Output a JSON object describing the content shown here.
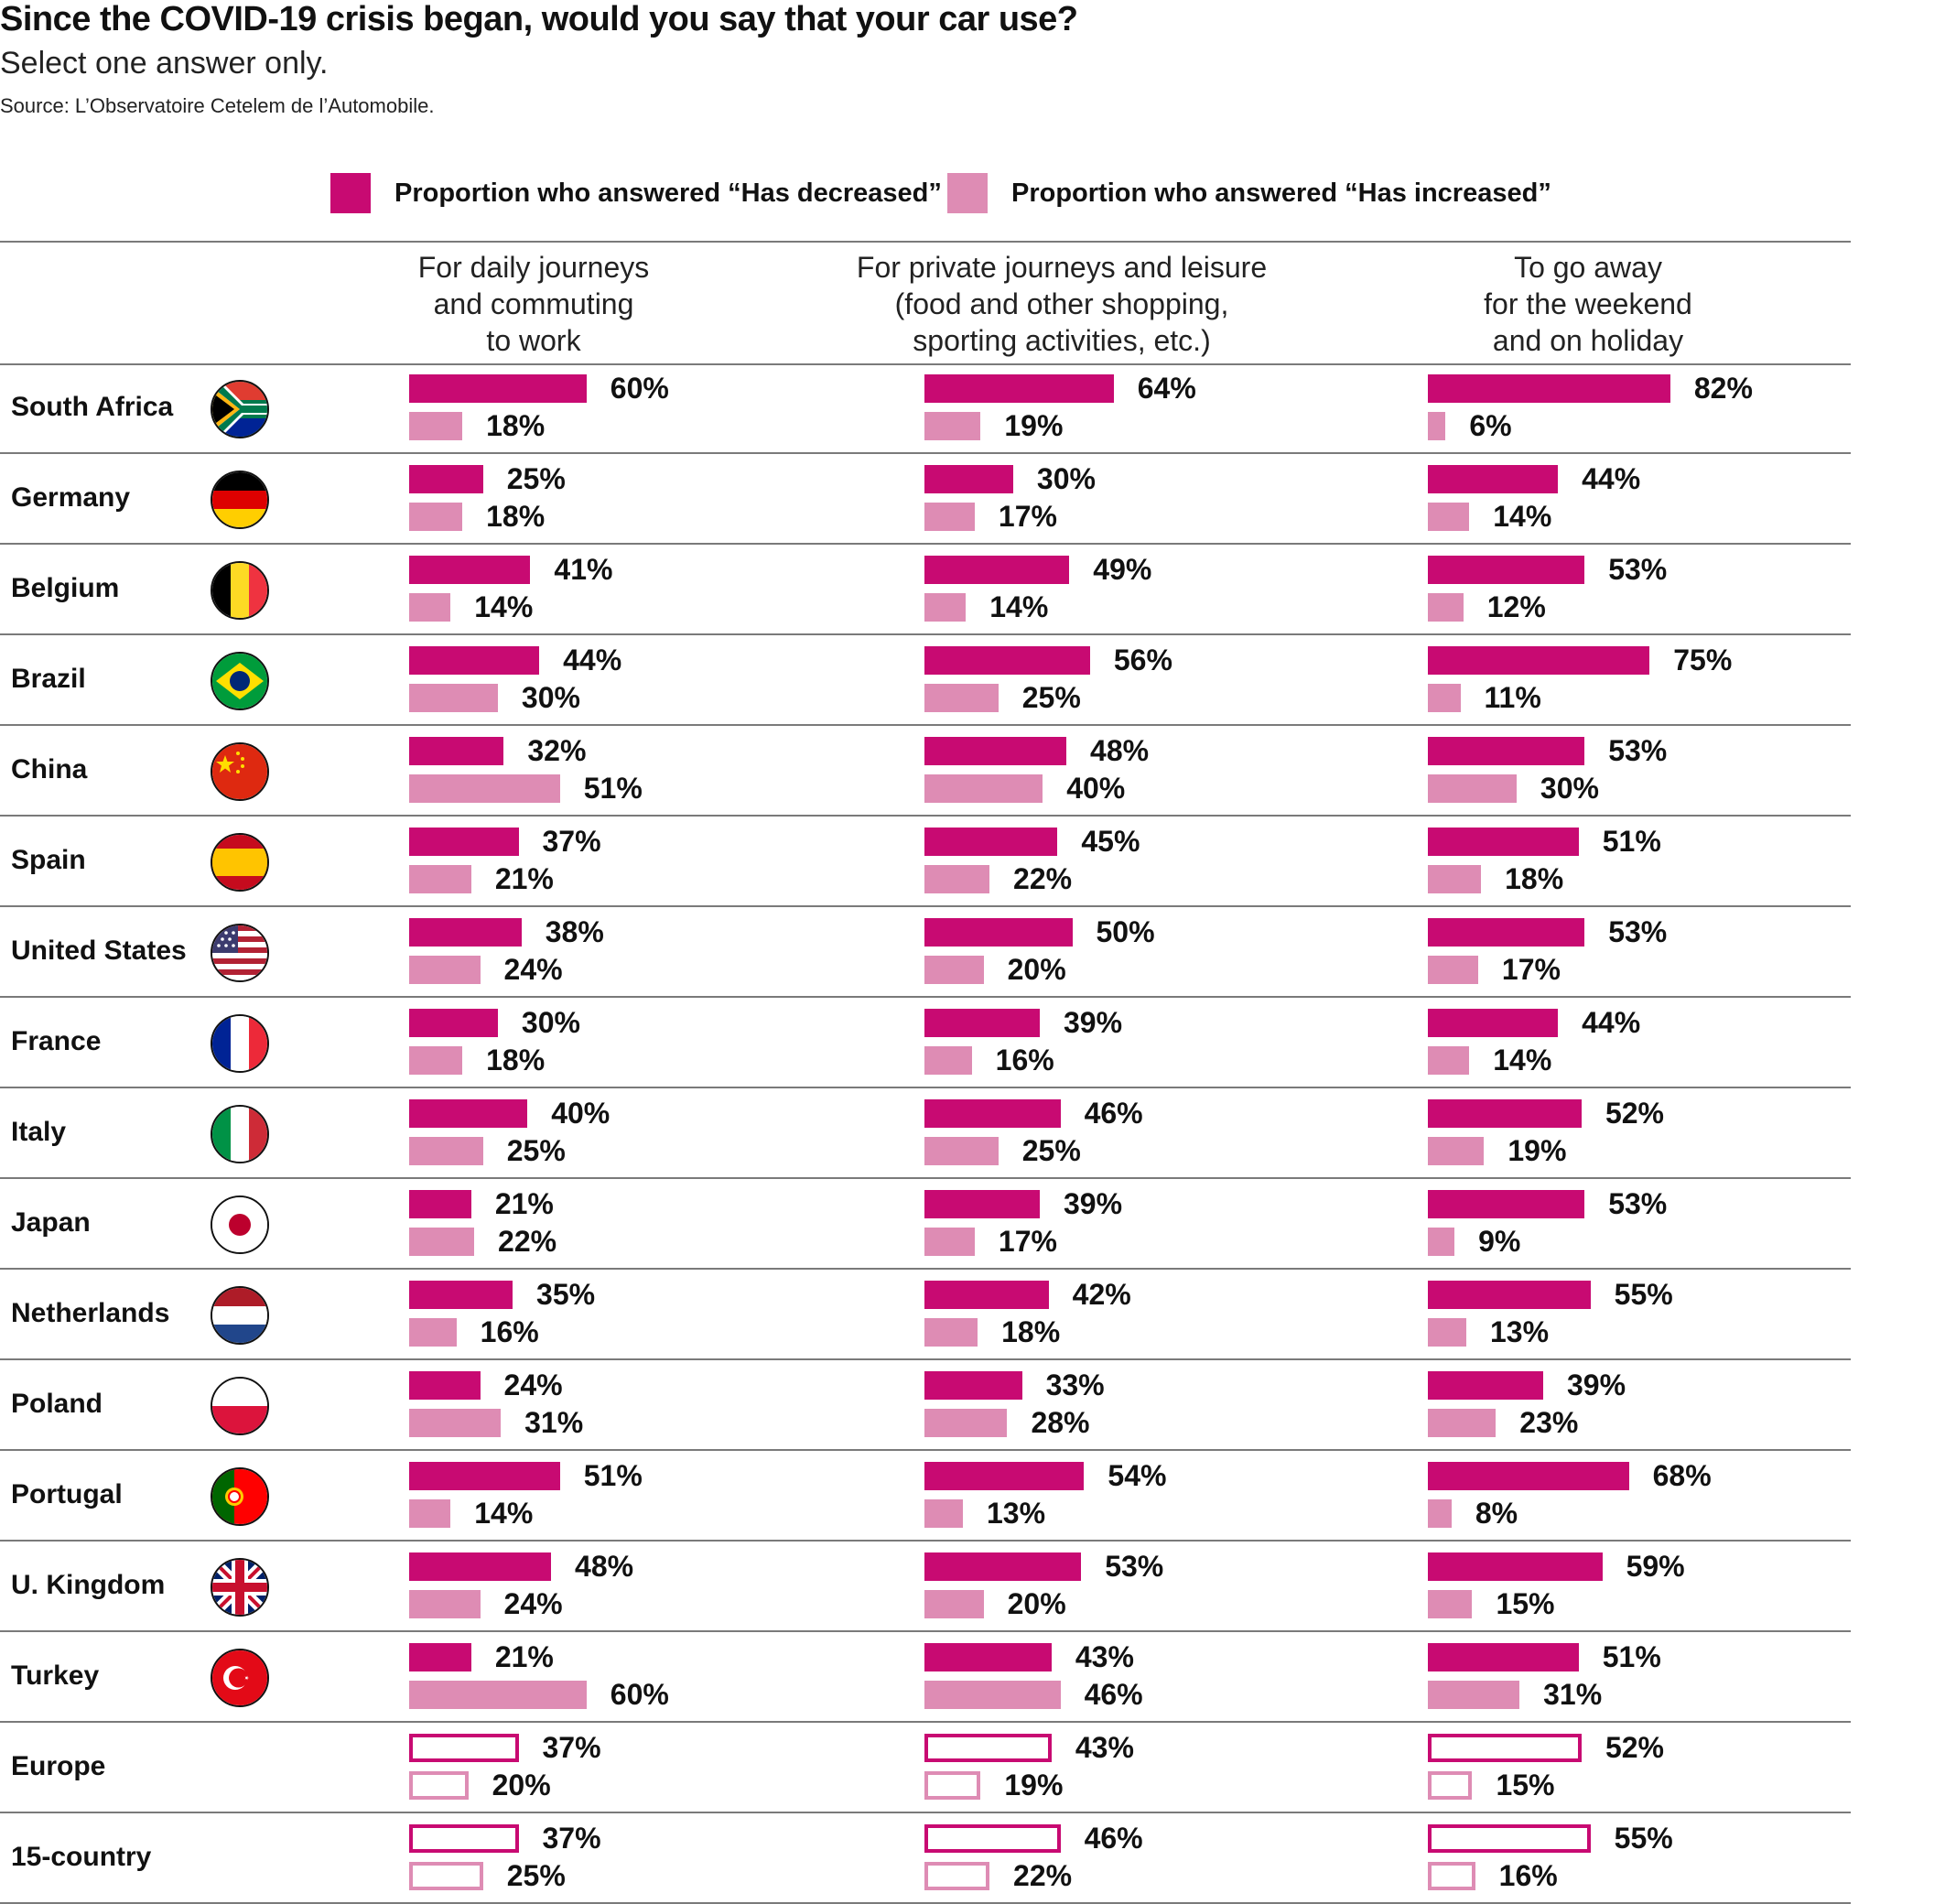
{
  "title": "Since the COVID-19 crisis began, would you say that your car use?",
  "subtitle": "Select one answer only.",
  "source": "Source: L’Observatoire Cetelem de l’Automobile.",
  "colors": {
    "decreased": "#c80a72",
    "increased": "#de8cb4",
    "text": "#111111",
    "rule": "#7a7a7a"
  },
  "legend": [
    {
      "label": "Proportion who answered “Has decreased”",
      "color": "#c80a72"
    },
    {
      "label": "Proportion who answered “Has increased”",
      "color": "#de8cb4"
    }
  ],
  "chart_data": {
    "type": "bar",
    "orientation": "horizontal",
    "title": "Since the COVID-19 crisis began, would you say that your car use?",
    "subtitle": "Select one answer only.",
    "source": "Source: L’Observatoire Cetelem de l’Automobile.",
    "legend_position": "top",
    "grid": false,
    "unit": "%",
    "xlim": [
      0,
      100
    ],
    "panels": [
      "For daily journeys\nand commuting\nto work",
      "For private journeys and leisure\n(food and other shopping,\nsporting activities, etc.)",
      "To go away\nfor the weekend\nand on holiday"
    ],
    "series": [
      {
        "name": "Has decreased",
        "key": "decreased"
      },
      {
        "name": "Has increased",
        "key": "increased"
      }
    ],
    "categories": [
      "South Africa",
      "Germany",
      "Belgium",
      "Brazil",
      "China",
      "Spain",
      "United States",
      "France",
      "Italy",
      "Japan",
      "Netherlands",
      "Poland",
      "Portugal",
      "U. Kingdom",
      "Turkey",
      "Europe",
      "15-country"
    ],
    "rows": [
      {
        "country": "South Africa",
        "flag": "za",
        "aggregate": false,
        "decreased": [
          60,
          64,
          82
        ],
        "increased": [
          18,
          19,
          6
        ]
      },
      {
        "country": "Germany",
        "flag": "de",
        "aggregate": false,
        "decreased": [
          25,
          30,
          44
        ],
        "increased": [
          18,
          17,
          14
        ]
      },
      {
        "country": "Belgium",
        "flag": "be",
        "aggregate": false,
        "decreased": [
          41,
          49,
          53
        ],
        "increased": [
          14,
          14,
          12
        ]
      },
      {
        "country": "Brazil",
        "flag": "br",
        "aggregate": false,
        "decreased": [
          44,
          56,
          75
        ],
        "increased": [
          30,
          25,
          11
        ]
      },
      {
        "country": "China",
        "flag": "cn",
        "aggregate": false,
        "decreased": [
          32,
          48,
          53
        ],
        "increased": [
          51,
          40,
          30
        ]
      },
      {
        "country": "Spain",
        "flag": "es",
        "aggregate": false,
        "decreased": [
          37,
          45,
          51
        ],
        "increased": [
          21,
          22,
          18
        ]
      },
      {
        "country": "United States",
        "flag": "us",
        "aggregate": false,
        "decreased": [
          38,
          50,
          53
        ],
        "increased": [
          24,
          20,
          17
        ]
      },
      {
        "country": "France",
        "flag": "fr",
        "aggregate": false,
        "decreased": [
          30,
          39,
          44
        ],
        "increased": [
          18,
          16,
          14
        ]
      },
      {
        "country": "Italy",
        "flag": "it",
        "aggregate": false,
        "decreased": [
          40,
          46,
          52
        ],
        "increased": [
          25,
          25,
          19
        ]
      },
      {
        "country": "Japan",
        "flag": "jp",
        "aggregate": false,
        "decreased": [
          21,
          39,
          53
        ],
        "increased": [
          22,
          17,
          9
        ]
      },
      {
        "country": "Netherlands",
        "flag": "nl",
        "aggregate": false,
        "decreased": [
          35,
          42,
          55
        ],
        "increased": [
          16,
          18,
          13
        ]
      },
      {
        "country": "Poland",
        "flag": "pl",
        "aggregate": false,
        "decreased": [
          24,
          33,
          39
        ],
        "increased": [
          31,
          28,
          23
        ]
      },
      {
        "country": "Portugal",
        "flag": "pt",
        "aggregate": false,
        "decreased": [
          51,
          54,
          68
        ],
        "increased": [
          14,
          13,
          8
        ]
      },
      {
        "country": "U. Kingdom",
        "flag": "gb",
        "aggregate": false,
        "decreased": [
          48,
          53,
          59
        ],
        "increased": [
          24,
          20,
          15
        ]
      },
      {
        "country": "Turkey",
        "flag": "tr",
        "aggregate": false,
        "decreased": [
          21,
          43,
          51
        ],
        "increased": [
          60,
          46,
          31
        ]
      },
      {
        "country": "Europe",
        "flag": "",
        "aggregate": true,
        "decreased": [
          37,
          43,
          52
        ],
        "increased": [
          20,
          19,
          15
        ]
      },
      {
        "country": "15-country",
        "flag": "",
        "aggregate": true,
        "decreased": [
          37,
          46,
          55
        ],
        "increased": [
          25,
          22,
          16
        ]
      }
    ]
  }
}
